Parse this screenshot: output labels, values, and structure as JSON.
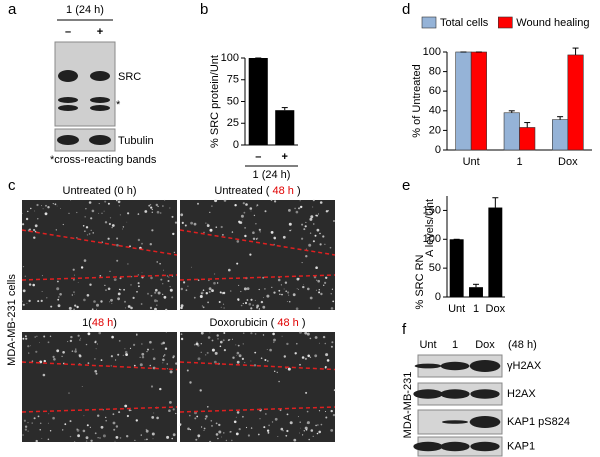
{
  "panel_a": {
    "label": "a",
    "treatment": "1 (24 h)",
    "lanes": [
      "–",
      "+"
    ],
    "bands": [
      "SRC",
      "*",
      "Tubulin"
    ],
    "footnote": "*cross-reacting bands"
  },
  "panel_c": {
    "label": "c",
    "side_label": "MDA-MB-231 cells",
    "images": [
      {
        "title": [
          "Untreated (0 h)"
        ]
      },
      {
        "title": [
          "Untreated ( ",
          "48 h",
          " )"
        ]
      },
      {
        "title": [
          "1(",
          "48 h",
          ")"
        ]
      },
      {
        "title": [
          "Doxorubicin ( ",
          "48 h",
          " )"
        ]
      }
    ]
  },
  "panel_f": {
    "label": "f",
    "lanes": [
      "Unt",
      "1",
      "Dox"
    ],
    "time": "(48 h)",
    "side_label": "MDA-MB-231",
    "bands": [
      "γH2AX",
      "H2AX",
      "KAP1 pS824",
      "KAP1"
    ]
  },
  "chart_data": [
    {
      "type": "bar",
      "panel": "b",
      "y_label": "% SRC protein/Unt",
      "x_label": "1 (24 h)",
      "categories": [
        "–",
        "+"
      ],
      "values": [
        100,
        40
      ],
      "errors": [
        0,
        3
      ],
      "color": "#000000",
      "ylim": [
        0,
        100
      ],
      "yticks": [
        0,
        25,
        50,
        75,
        100
      ]
    },
    {
      "type": "bar",
      "panel": "d",
      "y_label": "% of Untreated",
      "categories": [
        "Unt",
        "1",
        "Dox"
      ],
      "series": [
        {
          "name": "Total cells",
          "color": "#95b3d7",
          "values": [
            100,
            38,
            31
          ],
          "errors": [
            0,
            2,
            3
          ]
        },
        {
          "name": "Wound healing",
          "color": "#ff0000",
          "values": [
            100,
            23,
            97
          ],
          "errors": [
            0,
            5,
            7
          ]
        }
      ],
      "ylim": [
        0,
        100
      ],
      "yticks": [
        0,
        20,
        40,
        60,
        80,
        100
      ],
      "legend": "top"
    },
    {
      "type": "bar",
      "panel": "e",
      "y_label": [
        "% SRC RN",
        "A levels/Unt"
      ],
      "categories": [
        "Unt",
        "1",
        "Dox"
      ],
      "values": [
        100,
        17,
        155
      ],
      "errors": [
        0,
        5,
        17
      ],
      "color": "#000000",
      "ylim": [
        0,
        175
      ],
      "yticks": [
        0,
        50,
        100,
        150
      ]
    }
  ]
}
